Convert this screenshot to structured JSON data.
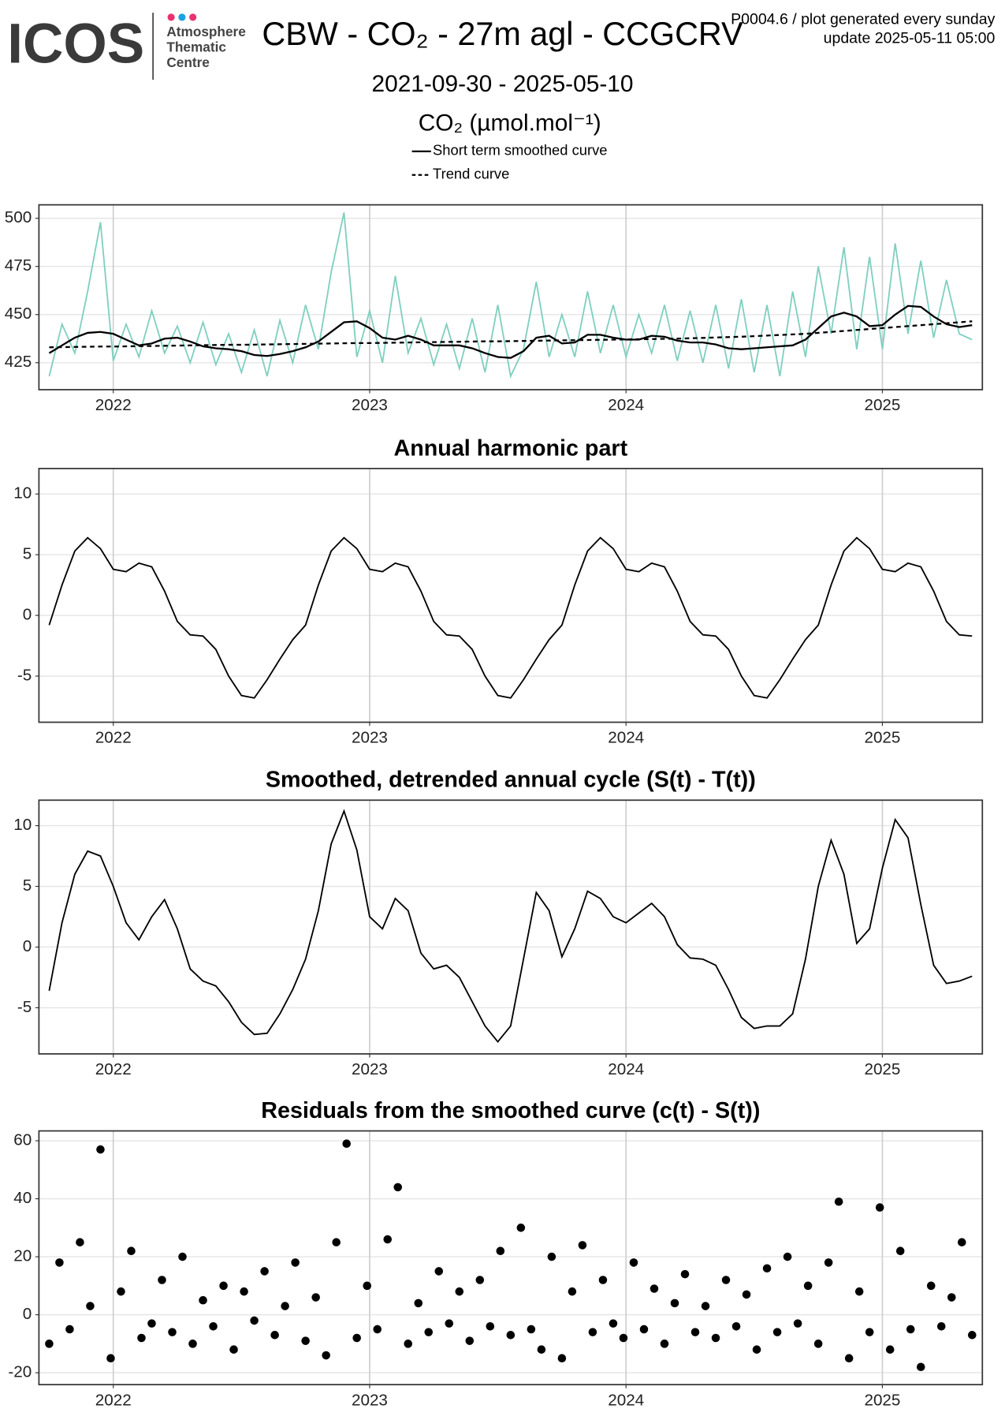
{
  "header": {
    "logo": "ICOS",
    "centre": [
      "Atmosphere",
      "Thematic",
      "Centre"
    ],
    "title": "CBW - CO₂ - 27m agl - CCGCRV",
    "note": "P0004.6 / plot generated every sunday",
    "update": "update  2025-05-11 05:00",
    "subtitle": "2021-09-30 - 2025-05-10"
  },
  "chart_data": [
    {
      "type": "line",
      "ylabel": "CO₂ (µmol.mol⁻¹)",
      "xlim": [
        2021.71,
        2025.39
      ],
      "xticks": [
        2022,
        2023,
        2024,
        2025
      ],
      "ylim": [
        411,
        507
      ],
      "yticks": [
        425,
        450,
        475,
        500
      ],
      "grid": true,
      "x": [
        2021.75,
        2021.8,
        2021.85,
        2021.9,
        2021.95,
        2022,
        2022.05,
        2022.1,
        2022.15,
        2022.2,
        2022.25,
        2022.3,
        2022.35,
        2022.4,
        2022.45,
        2022.5,
        2022.55,
        2022.6,
        2022.65,
        2022.7,
        2022.75,
        2022.8,
        2022.85,
        2022.9,
        2022.95,
        2023,
        2023.05,
        2023.1,
        2023.15,
        2023.2,
        2023.25,
        2023.3,
        2023.35,
        2023.4,
        2023.45,
        2023.5,
        2023.55,
        2023.6,
        2023.65,
        2023.7,
        2023.75,
        2023.8,
        2023.85,
        2023.9,
        2023.95,
        2024,
        2024.05,
        2024.1,
        2024.15,
        2024.2,
        2024.25,
        2024.3,
        2024.35,
        2024.4,
        2024.45,
        2024.5,
        2024.55,
        2024.6,
        2024.65,
        2024.7,
        2024.75,
        2024.8,
        2024.85,
        2024.9,
        2024.95,
        2025,
        2025.05,
        2025.1,
        2025.15,
        2025.2,
        2025.25,
        2025.3,
        2025.35
      ],
      "series": [
        {
          "color": "#80cfc0",
          "linestyle": "solid",
          "values": [
            418,
            445,
            430,
            462,
            498,
            426,
            445,
            428,
            452,
            430,
            444,
            425,
            446,
            424,
            440,
            420,
            442,
            418,
            447,
            425,
            455,
            432,
            472,
            503,
            428,
            452,
            425,
            470,
            430,
            448,
            424,
            445,
            422,
            448,
            420,
            455,
            418,
            432,
            467,
            428,
            450,
            428,
            462,
            430,
            455,
            428,
            450,
            430,
            455,
            426,
            452,
            425,
            455,
            422,
            458,
            420,
            455,
            418,
            462,
            428,
            475,
            440,
            485,
            432,
            480,
            432,
            487,
            440,
            478,
            438,
            468,
            440,
            437
          ]
        },
        {
          "name": "Short term smoothed curve",
          "color": "#000000",
          "linestyle": "solid",
          "values": [
            430,
            434,
            438,
            440.5,
            441,
            440,
            437,
            434,
            435,
            437.5,
            438,
            436,
            433.5,
            432.5,
            432,
            431,
            429,
            428.5,
            429.5,
            431,
            433,
            436,
            441,
            446,
            446.5,
            443,
            438,
            437,
            439,
            437,
            434,
            434,
            434,
            432.5,
            430,
            428,
            427.5,
            431,
            438,
            439,
            435,
            435.5,
            439.5,
            439.5,
            438,
            437,
            437,
            439,
            438.5,
            436.5,
            435.5,
            435.5,
            434.5,
            432.5,
            432,
            432.5,
            433,
            433.5,
            434,
            437,
            443,
            449,
            451,
            449,
            444,
            444.5,
            450,
            454.5,
            454,
            449,
            445,
            443.5,
            444.5
          ]
        },
        {
          "name": "Trend curve",
          "color": "#000000",
          "linestyle": "dashed",
          "values": [
            433.0,
            433.1,
            433.2,
            433.3,
            433.4,
            433.4,
            433.5,
            433.6,
            433.7,
            433.8,
            433.9,
            434.0,
            434.1,
            434.2,
            434.3,
            434.3,
            434.4,
            434.5,
            434.6,
            434.7,
            434.8,
            434.9,
            435.0,
            435.1,
            435.2,
            435.2,
            435.3,
            435.4,
            435.5,
            435.6,
            435.7,
            435.8,
            435.9,
            436.0,
            436.1,
            436.1,
            436.2,
            436.3,
            436.4,
            436.5,
            436.6,
            436.7,
            436.8,
            436.9,
            437.0,
            437.1,
            437.2,
            437.3,
            437.4,
            437.5,
            437.7,
            437.9,
            438.1,
            438.3,
            438.5,
            438.8,
            439.1,
            439.4,
            439.7,
            440.0,
            440.5,
            441.0,
            441.5,
            442.0,
            442.5,
            443.0,
            443.5,
            444.0,
            444.5,
            445.0,
            445.5,
            446.0,
            446.5
          ]
        }
      ]
    },
    {
      "type": "line",
      "title": "Annual harmonic part",
      "xlim": [
        2021.71,
        2025.39
      ],
      "xticks": [
        2022,
        2023,
        2024,
        2025
      ],
      "ylim": [
        -8.8,
        12.1
      ],
      "yticks": [
        -5,
        0,
        5,
        10
      ],
      "grid": true,
      "x": [
        2021.75,
        2021.8,
        2021.85,
        2021.9,
        2021.95,
        2022,
        2022.05,
        2022.1,
        2022.15,
        2022.2,
        2022.25,
        2022.3,
        2022.35,
        2022.4,
        2022.45,
        2022.5,
        2022.55,
        2022.6,
        2022.65,
        2022.7,
        2022.75,
        2022.8,
        2022.85,
        2022.9,
        2022.95,
        2023,
        2023.05,
        2023.1,
        2023.15,
        2023.2,
        2023.25,
        2023.3,
        2023.35,
        2023.4,
        2023.45,
        2023.5,
        2023.55,
        2023.6,
        2023.65,
        2023.7,
        2023.75,
        2023.8,
        2023.85,
        2023.9,
        2023.95,
        2024,
        2024.05,
        2024.1,
        2024.15,
        2024.2,
        2024.25,
        2024.3,
        2024.35,
        2024.4,
        2024.45,
        2024.5,
        2024.55,
        2024.6,
        2024.65,
        2024.7,
        2024.75,
        2024.8,
        2024.85,
        2024.9,
        2024.95,
        2025,
        2025.05,
        2025.1,
        2025.15,
        2025.2,
        2025.25,
        2025.3,
        2025.35
      ],
      "series": [
        {
          "color": "#000000",
          "linestyle": "solid",
          "values": [
            -0.8,
            2.5,
            5.3,
            6.4,
            5.5,
            3.8,
            3.6,
            4.3,
            4.0,
            2.0,
            -0.5,
            -1.6,
            -1.7,
            -2.8,
            -5.0,
            -6.6,
            -6.8,
            -5.3,
            -3.6,
            -2.0,
            -0.8,
            2.5,
            5.3,
            6.4,
            5.5,
            3.8,
            3.6,
            4.3,
            4.0,
            2.0,
            -0.5,
            -1.6,
            -1.7,
            -2.8,
            -5.0,
            -6.6,
            -6.8,
            -5.3,
            -3.6,
            -2.0,
            -0.8,
            2.5,
            5.3,
            6.4,
            5.5,
            3.8,
            3.6,
            4.3,
            4.0,
            2.0,
            -0.5,
            -1.6,
            -1.7,
            -2.8,
            -5.0,
            -6.6,
            -6.8,
            -5.3,
            -3.6,
            -2.0,
            -0.8,
            2.5,
            5.3,
            6.4,
            5.5,
            3.8,
            3.6,
            4.3,
            4.0,
            2.0,
            -0.5,
            -1.6,
            -1.7
          ]
        }
      ]
    },
    {
      "type": "line",
      "title": "Smoothed, detrended annual cycle (S(t) - T(t))",
      "xlim": [
        2021.71,
        2025.39
      ],
      "xticks": [
        2022,
        2023,
        2024,
        2025
      ],
      "ylim": [
        -8.8,
        12.1
      ],
      "yticks": [
        -5,
        0,
        5,
        10
      ],
      "grid": true,
      "x": [
        2021.75,
        2021.8,
        2021.85,
        2021.9,
        2021.95,
        2022,
        2022.05,
        2022.1,
        2022.15,
        2022.2,
        2022.25,
        2022.3,
        2022.35,
        2022.4,
        2022.45,
        2022.5,
        2022.55,
        2022.6,
        2022.65,
        2022.7,
        2022.75,
        2022.8,
        2022.85,
        2022.9,
        2022.95,
        2023,
        2023.05,
        2023.1,
        2023.15,
        2023.2,
        2023.25,
        2023.3,
        2023.35,
        2023.4,
        2023.45,
        2023.5,
        2023.55,
        2023.6,
        2023.65,
        2023.7,
        2023.75,
        2023.8,
        2023.85,
        2023.9,
        2023.95,
        2024,
        2024.05,
        2024.1,
        2024.15,
        2024.2,
        2024.25,
        2024.3,
        2024.35,
        2024.4,
        2024.45,
        2024.5,
        2024.55,
        2024.6,
        2024.65,
        2024.7,
        2024.75,
        2024.8,
        2024.85,
        2024.9,
        2024.95,
        2025,
        2025.05,
        2025.1,
        2025.15,
        2025.2,
        2025.25,
        2025.3,
        2025.35
      ],
      "series": [
        {
          "color": "#000000",
          "linestyle": "solid",
          "values": [
            -3.6,
            2,
            6,
            7.9,
            7.5,
            5,
            2,
            0.6,
            2.5,
            3.9,
            1.5,
            -1.8,
            -2.8,
            -3.2,
            -4.5,
            -6.2,
            -7.2,
            -7.1,
            -5.5,
            -3.5,
            -1,
            3,
            8.5,
            11.2,
            8,
            2.5,
            1.5,
            4,
            3,
            -0.5,
            -1.8,
            -1.5,
            -2.5,
            -4.5,
            -6.5,
            -7.8,
            -6.5,
            -1,
            4.5,
            3,
            -0.8,
            1.5,
            4.6,
            4,
            2.5,
            2,
            2.8,
            3.6,
            2.5,
            0.2,
            -0.9,
            -1,
            -1.5,
            -3.5,
            -5.8,
            -6.7,
            -6.5,
            -6.5,
            -5.5,
            -1,
            5,
            8.8,
            6,
            0.3,
            1.5,
            6.5,
            10.5,
            9,
            3.5,
            -1.5,
            -3,
            -2.8,
            -2.4
          ]
        }
      ]
    },
    {
      "type": "scatter",
      "title": "Residuals from the smoothed curve (c(t) - S(t))",
      "xlim": [
        2021.71,
        2025.39
      ],
      "xticks": [
        2022,
        2023,
        2024,
        2025
      ],
      "ylim": [
        -24.1,
        63.4
      ],
      "yticks": [
        -20,
        0,
        20,
        40,
        60
      ],
      "grid": true,
      "color": "#000000",
      "x": [
        2021.75,
        2021.79,
        2021.83,
        2021.87,
        2021.91,
        2021.95,
        2021.99,
        2022.03,
        2022.07,
        2022.11,
        2022.15,
        2022.19,
        2022.23,
        2022.27,
        2022.31,
        2022.35,
        2022.39,
        2022.43,
        2022.47,
        2022.51,
        2022.55,
        2022.59,
        2022.63,
        2022.67,
        2022.71,
        2022.75,
        2022.79,
        2022.83,
        2022.87,
        2022.91,
        2022.95,
        2022.99,
        2023.03,
        2023.07,
        2023.11,
        2023.15,
        2023.19,
        2023.23,
        2023.27,
        2023.31,
        2023.35,
        2023.39,
        2023.43,
        2023.47,
        2023.51,
        2023.55,
        2023.59,
        2023.63,
        2023.67,
        2023.71,
        2023.75,
        2023.79,
        2023.83,
        2023.87,
        2023.91,
        2023.95,
        2023.99,
        2024.03,
        2024.07,
        2024.11,
        2024.15,
        2024.19,
        2024.23,
        2024.27,
        2024.31,
        2024.35,
        2024.39,
        2024.43,
        2024.47,
        2024.51,
        2024.55,
        2024.59,
        2024.63,
        2024.67,
        2024.71,
        2024.75,
        2024.79,
        2024.83,
        2024.87,
        2024.91,
        2024.95,
        2024.99,
        2025.03,
        2025.07,
        2025.11,
        2025.15,
        2025.19,
        2025.23,
        2025.27,
        2025.31,
        2025.35
      ],
      "values": [
        -10,
        18,
        -5,
        25,
        3,
        57,
        -15,
        8,
        22,
        -8,
        -3,
        12,
        -6,
        20,
        -10,
        5,
        -4,
        10,
        -12,
        8,
        -2,
        15,
        -7,
        3,
        18,
        -9,
        6,
        -14,
        25,
        59,
        -8,
        10,
        -5,
        26,
        44,
        -10,
        4,
        -6,
        15,
        -3,
        8,
        -9,
        12,
        -4,
        22,
        -7,
        30,
        -5,
        -12,
        20,
        -15,
        8,
        24,
        -6,
        12,
        -3,
        -8,
        18,
        -5,
        9,
        -10,
        4,
        14,
        -6,
        3,
        -8,
        12,
        -4,
        7,
        -12,
        16,
        -6,
        20,
        -3,
        10,
        -10,
        18,
        39,
        -15,
        8,
        -6,
        37,
        -12,
        22,
        -5,
        -18,
        10,
        -4,
        6,
        25,
        -7
      ]
    }
  ]
}
